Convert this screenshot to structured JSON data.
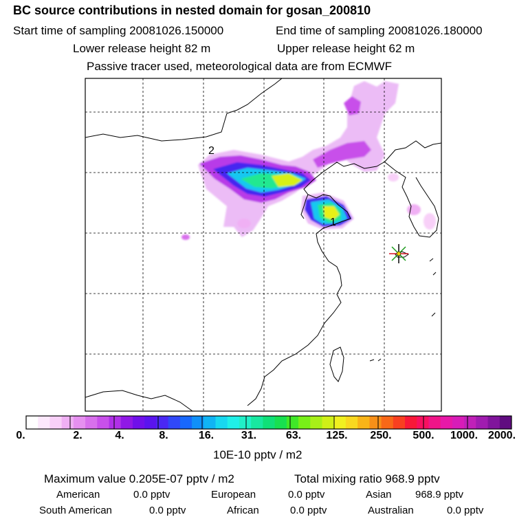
{
  "header": {
    "title": "BC  source contributions in nested domain for gosan_200810",
    "start_time": "Start time of sampling 20081026.150000",
    "end_time": "End time of sampling 20081026.180000",
    "lower_height": "Lower release height   82 m",
    "upper_height": "Upper release height   62 m",
    "tracer_note": "Passive tracer used, meteorological data are from ECMWF"
  },
  "map": {
    "labels": [
      "2",
      "1"
    ]
  },
  "colorbar": {
    "tick_labels": [
      "0.",
      "2.",
      "4.",
      "8.",
      "16.",
      "31.",
      "63.",
      "125.",
      "250.",
      "500.",
      "1000.",
      "2000."
    ],
    "colors": [
      "#ffffff",
      "#fce8fc",
      "#f8d0f8",
      "#f0b0f4",
      "#e690f0",
      "#d870ec",
      "#c850ea",
      "#b030e8",
      "#9018e6",
      "#7010ea",
      "#5a14ee",
      "#4a28f4",
      "#3048f8",
      "#1868fc",
      "#1090f8",
      "#10b4f4",
      "#18d8f0",
      "#20f0e8",
      "#20f0c8",
      "#18e8a0",
      "#10e078",
      "#18e050",
      "#40e828",
      "#78f018",
      "#a8f018",
      "#d0f018",
      "#f0f020",
      "#f8d820",
      "#f8b418",
      "#f89018",
      "#f86818",
      "#f84020",
      "#f81838",
      "#f81060",
      "#f01488",
      "#e818a8",
      "#d81cb8",
      "#c020b8",
      "#a01cb0",
      "#80149c",
      "#600c80"
    ],
    "units": "10E-10 pptv / m2"
  },
  "summary": {
    "max_value": "Maximum value  0.205E-07 pptv / m2",
    "total_mixing": "Total mixing ratio      968.9 pptv",
    "american_label": "American",
    "american_value": "0.0 pptv",
    "european_label": "European",
    "european_value": "0.0 pptv",
    "asian_label": "Asian",
    "asian_value": "968.9 pptv",
    "south_american_label": "South American",
    "south_american_value": "0.0 pptv",
    "african_label": "African",
    "african_value": "0.0 pptv",
    "australian_label": "Australian",
    "australian_value": "0.0 pptv"
  },
  "chart_data": {
    "type": "heatmap",
    "title": "BC  source contributions in nested domain for gosan_200810",
    "colorbar_levels": [
      0,
      2,
      4,
      8,
      16,
      31,
      63,
      125,
      250,
      500,
      1000,
      2000
    ],
    "colorbar_units": "10E-10 pptv / m2",
    "maximum_value": "0.205E-07 pptv / m2",
    "total_mixing_ratio_pptv": 968.9,
    "regional_contributions_pptv": {
      "American": 0.0,
      "European": 0.0,
      "Asian": 968.9,
      "South American": 0.0,
      "African": 0.0,
      "Australian": 0.0
    },
    "annotations": [
      "2",
      "1"
    ],
    "grid": true
  }
}
